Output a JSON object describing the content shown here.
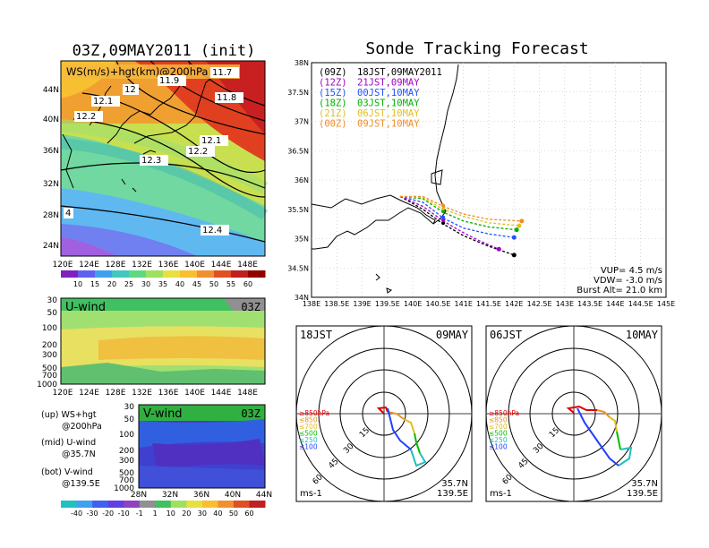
{
  "left_panel": {
    "title": "03Z,09MAY2011 (init)",
    "map_label": "WS(m/s)+hgt(km)@200hPa",
    "contour_labels": [
      "11.9",
      "11.7",
      "12",
      "11.8",
      "12.1",
      "12.2",
      "12.1",
      "12.2",
      "12.3",
      "4",
      "12.4"
    ],
    "lon_ticks": [
      "120E",
      "124E",
      "128E",
      "132E",
      "136E",
      "140E",
      "144E",
      "148E"
    ],
    "lat_ticks": [
      "44N",
      "40N",
      "36N",
      "32N",
      "28N",
      "24N"
    ],
    "ws_colorbar": [
      "10",
      "15",
      "20",
      "25",
      "30",
      "35",
      "40",
      "45",
      "50",
      "55",
      "60"
    ],
    "uwind_label": "U-wind",
    "uwind_time": "03Z",
    "uwind_levels": [
      "30",
      "50",
      "100",
      "200",
      "300",
      "500",
      "700",
      "1000"
    ],
    "uwind_lon_ticks": [
      "120E",
      "124E",
      "128E",
      "132E",
      "136E",
      "140E",
      "144E",
      "148E"
    ],
    "vwind_label": "V-wind",
    "vwind_time": "03Z",
    "vwind_levels": [
      "30",
      "50",
      "100",
      "200",
      "300",
      "500",
      "700",
      "1000"
    ],
    "vwind_lat_ticks": [
      "28N",
      "32N",
      "36N",
      "40N",
      "44N"
    ],
    "legend_lines": [
      [
        "(up) WS+hgt",
        "@200hPa"
      ],
      [
        "(mid) U-wind",
        "@35.7N"
      ],
      [
        "(bot) V-wind",
        "@139.5E"
      ]
    ],
    "wind_colorbar": [
      "-40",
      "-30",
      "-20",
      "-10",
      "-1",
      "1",
      "10",
      "20",
      "30",
      "40",
      "50",
      "60"
    ]
  },
  "right_panel": {
    "title": "Sonde Tracking Forecast",
    "legend": [
      {
        "run": "(09Z)",
        "time": "18JST,09MAY2011",
        "color": "#000000"
      },
      {
        "run": "(12Z)",
        "time": "21JST,09MAY",
        "color": "#a000c8"
      },
      {
        "run": "(15Z)",
        "time": "00JST,10MAY",
        "color": "#2050ff"
      },
      {
        "run": "(18Z)",
        "time": "03JST,10MAY",
        "color": "#00b000"
      },
      {
        "run": "(21Z)",
        "time": "06JST,10MAY",
        "color": "#e0c020"
      },
      {
        "run": "(00Z)",
        "time": "09JST,10MAY",
        "color": "#f08c28"
      }
    ],
    "lat_ticks": [
      "38N",
      "37.5N",
      "37N",
      "36.5N",
      "36N",
      "35.5N",
      "35N",
      "34.5N",
      "34N"
    ],
    "lon_ticks": [
      "138E",
      "138.5E",
      "139E",
      "139.5E",
      "140E",
      "140.5E",
      "141E",
      "141.5E",
      "142E",
      "142.5E",
      "143E",
      "143.5E",
      "144E",
      "144.5E",
      "145E"
    ],
    "params": [
      "VUP= 4.5 m/s",
      "VDW= -3.0 m/s",
      "Burst Alt= 21.0 km"
    ]
  },
  "hodographs": [
    {
      "time": "18JST",
      "date": "09MAY",
      "units": "ms-1",
      "lat": "35.7N",
      "lon": "139.5E",
      "ring_labels": [
        "15",
        "30",
        "45",
        "60"
      ],
      "levels": [
        {
          "label": "≥850hPa",
          "color": "#e00000"
        },
        {
          "label": "≤850",
          "color": "#f09020"
        },
        {
          "label": "≤700",
          "color": "#e0c020"
        },
        {
          "label": "≤500",
          "color": "#00c000"
        },
        {
          "label": "≤250",
          "color": "#20c0c0"
        },
        {
          "label": "≤100",
          "color": "#2040ff"
        }
      ]
    },
    {
      "time": "06JST",
      "date": "10MAY",
      "units": "ms-1",
      "lat": "35.7N",
      "lon": "139.5E",
      "ring_labels": [
        "15",
        "30",
        "45",
        "60"
      ],
      "levels": [
        {
          "label": "≥850hPa",
          "color": "#e00000"
        },
        {
          "label": "≤850",
          "color": "#f09020"
        },
        {
          "label": "≤700",
          "color": "#e0c020"
        },
        {
          "label": "≤500",
          "color": "#00c000"
        },
        {
          "label": "≤250",
          "color": "#20c0c0"
        },
        {
          "label": "≤100",
          "color": "#2040ff"
        }
      ]
    }
  ],
  "chart_data": [
    {
      "type": "line",
      "title": "Sonde Tracking Forecast",
      "xlabel": "",
      "ylabel": "",
      "xlim": [
        138,
        145
      ],
      "ylim": [
        34,
        38
      ],
      "grid": true,
      "legend_position": "top-left",
      "series": [
        {
          "name": "18JST,09MAY2011",
          "color": "#000000",
          "x": [
            139.75,
            140.2,
            140.6,
            141.0,
            141.5,
            142.0
          ],
          "y": [
            35.72,
            35.5,
            35.25,
            35.05,
            34.87,
            34.72
          ]
        },
        {
          "name": "21JST,09MAY",
          "color": "#a000c8",
          "x": [
            139.75,
            140.2,
            140.6,
            141.0,
            141.3,
            141.7
          ],
          "y": [
            35.72,
            35.55,
            35.3,
            35.1,
            34.97,
            34.82
          ]
        },
        {
          "name": "00JST,10MAY",
          "color": "#2050ff",
          "x": [
            139.75,
            140.2,
            140.6,
            141.0,
            141.5,
            142.0
          ],
          "y": [
            35.72,
            35.62,
            35.35,
            35.18,
            35.08,
            35.02
          ]
        },
        {
          "name": "03JST,10MAY",
          "color": "#00b000",
          "x": [
            139.75,
            140.2,
            140.6,
            141.0,
            141.5,
            142.05
          ],
          "y": [
            35.72,
            35.68,
            35.45,
            35.3,
            35.2,
            35.15
          ]
        },
        {
          "name": "06JST,10MAY",
          "color": "#e0c020",
          "x": [
            139.75,
            140.2,
            140.6,
            141.0,
            141.5,
            142.1
          ],
          "y": [
            35.72,
            35.7,
            35.5,
            35.38,
            35.27,
            35.22
          ]
        },
        {
          "name": "09JST,10MAY",
          "color": "#f08c28",
          "x": [
            139.75,
            140.2,
            140.6,
            141.0,
            141.5,
            142.15
          ],
          "y": [
            35.72,
            35.72,
            35.55,
            35.42,
            35.33,
            35.3
          ]
        }
      ]
    }
  ]
}
